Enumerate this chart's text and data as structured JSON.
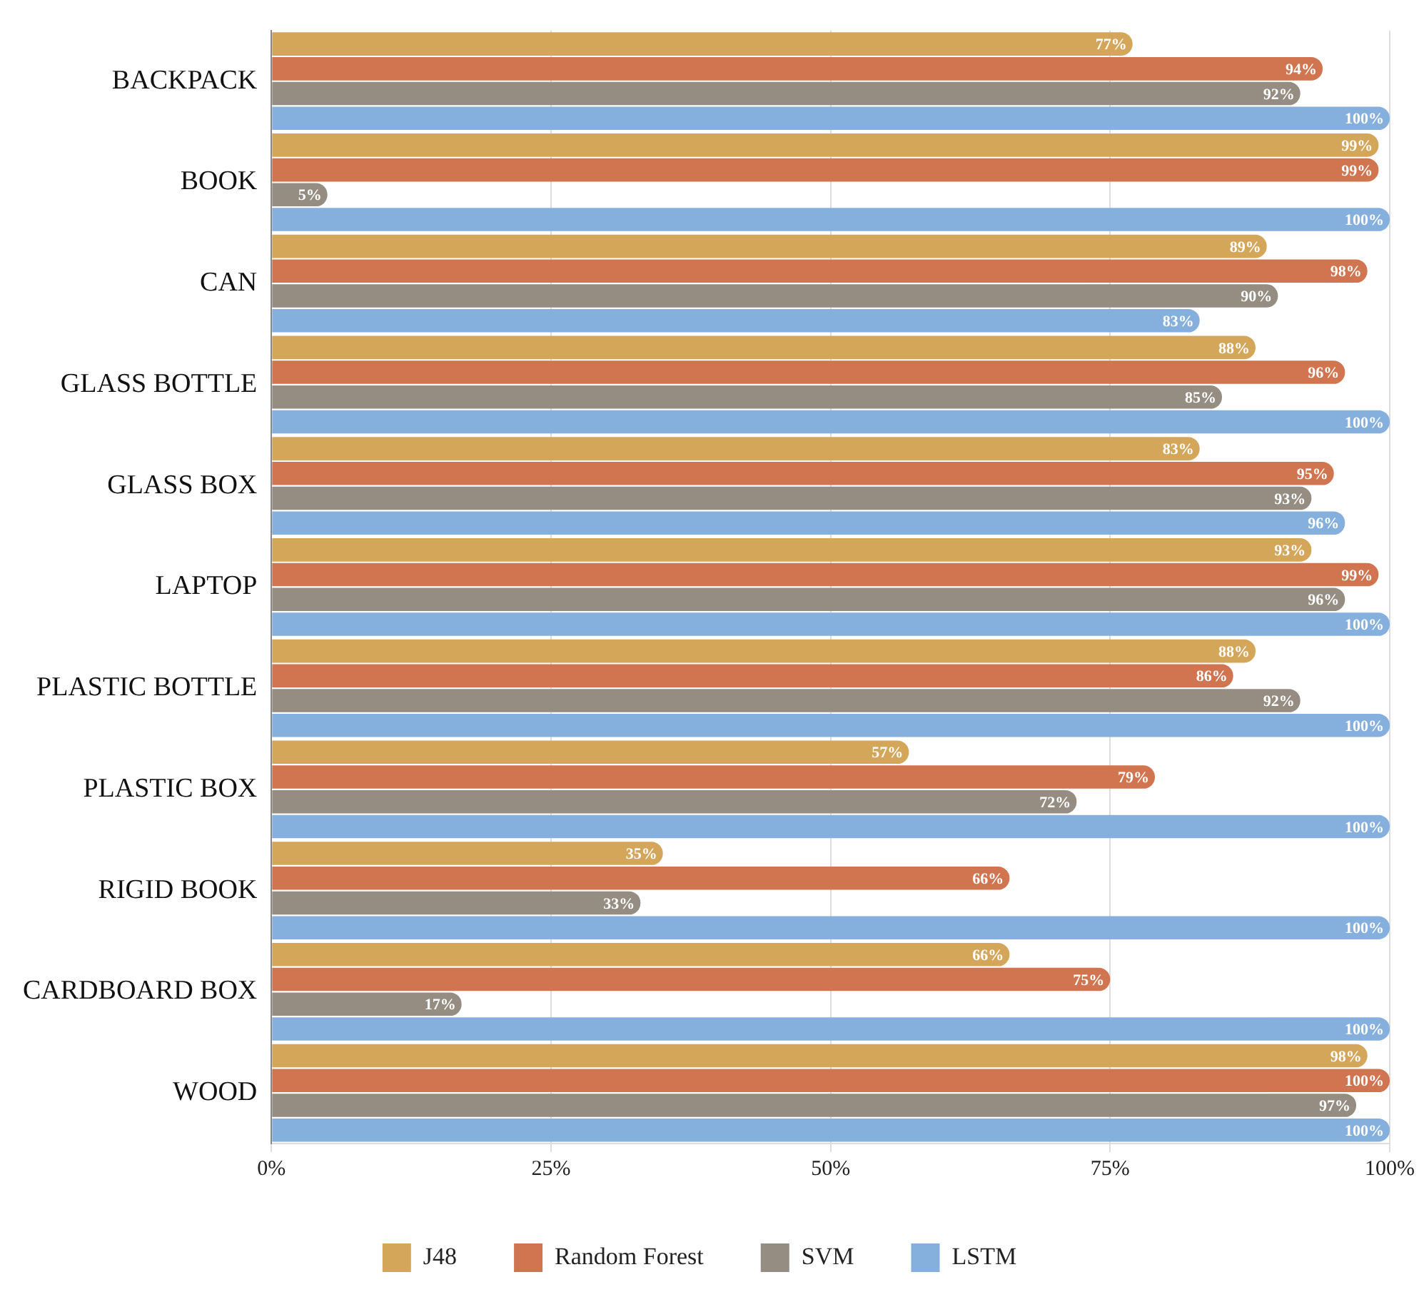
{
  "chart_data": {
    "type": "bar",
    "orientation": "horizontal",
    "categories": [
      "BACKPACK",
      "BOOK",
      "CAN",
      "GLASS BOTTLE",
      "GLASS BOX",
      "LAPTOP",
      "PLASTIC BOTTLE",
      "PLASTIC BOX",
      "RIGID BOOK",
      "CARDBOARD BOX",
      "WOOD"
    ],
    "series": [
      {
        "name": "J48",
        "color": "#d4a65a",
        "values": [
          77,
          99,
          89,
          88,
          83,
          93,
          88,
          57,
          35,
          66,
          98
        ],
        "value_labels": [
          "77%",
          "99%",
          "89%",
          "88%",
          "83%",
          "93%",
          "88%",
          "57%",
          "35%",
          "66%",
          "98%"
        ]
      },
      {
        "name": "Random Forest",
        "color": "#d07550",
        "values": [
          94,
          99,
          98,
          96,
          95,
          99,
          86,
          79,
          66,
          75,
          100
        ],
        "value_labels": [
          "94%",
          "99%",
          "98%",
          "96%",
          "95%",
          "99%",
          "86%",
          "79%",
          "66%",
          "75%",
          "100%"
        ]
      },
      {
        "name": "SVM",
        "color": "#958c82",
        "values": [
          92,
          5,
          90,
          85,
          93,
          96,
          92,
          72,
          33,
          17,
          97
        ],
        "value_labels": [
          "92%",
          "5%",
          "90%",
          "85%",
          "93%",
          "96%",
          "92%",
          "72%",
          "33%",
          "17%",
          "97%"
        ]
      },
      {
        "name": "LSTM",
        "color": "#85b0de",
        "values": [
          100,
          100,
          83,
          100,
          96,
          100,
          100,
          100,
          100,
          100,
          100
        ],
        "value_labels": [
          "100%",
          "100%",
          "83%",
          "100%",
          "96%",
          "100%",
          "100%",
          "100%",
          "100%",
          "100%",
          "100%"
        ]
      }
    ],
    "xlim": [
      0,
      100
    ],
    "xticks": [
      {
        "value": 0,
        "label": "0%"
      },
      {
        "value": 25,
        "label": "25%"
      },
      {
        "value": 50,
        "label": "50%"
      },
      {
        "value": 75,
        "label": "75%"
      },
      {
        "value": 100,
        "label": "100%"
      }
    ],
    "grid": "x",
    "legend": "bottom"
  }
}
